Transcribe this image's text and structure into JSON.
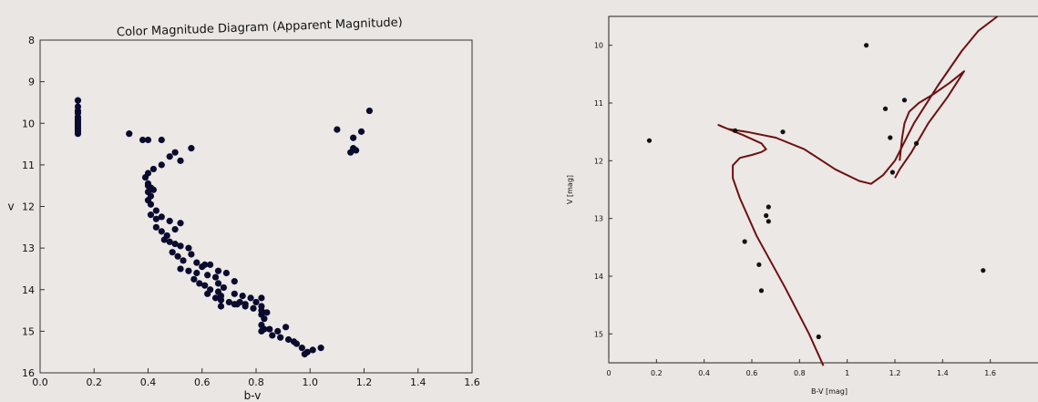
{
  "chart_data": [
    {
      "type": "scatter",
      "title": "Color Magnitude Diagram (Apparent Magnitude)",
      "xlabel": "b-v",
      "ylabel": "v",
      "xlim": [
        0.0,
        1.6
      ],
      "ylim": [
        16,
        8
      ],
      "y_inverted": true,
      "grid": false,
      "xticks": [
        "0.0",
        "0.2",
        "0.4",
        "0.6",
        "0.8",
        "1.0",
        "1.2",
        "1.4",
        "1.6"
      ],
      "yticks": [
        "8",
        "9",
        "10",
        "11",
        "12",
        "13",
        "14",
        "15",
        "16"
      ],
      "marker_color": "#0b0b2e",
      "series": [
        {
          "x": [
            0.14,
            0.14,
            0.14,
            0.14,
            0.14,
            0.14,
            0.14,
            0.14,
            0.14,
            0.14,
            0.14,
            0.14,
            0.14,
            0.33,
            0.38,
            0.4,
            0.45,
            0.56,
            0.42,
            0.4,
            0.45,
            0.48,
            0.5,
            0.52,
            0.39,
            0.4,
            0.41,
            0.4,
            0.41,
            0.4,
            0.41,
            0.4,
            0.42,
            0.41,
            0.43,
            0.43,
            0.45,
            0.48,
            0.52,
            0.43,
            0.45,
            0.47,
            0.5,
            0.46,
            0.48,
            0.5,
            0.52,
            0.55,
            0.49,
            0.51,
            0.53,
            0.56,
            0.58,
            0.61,
            0.52,
            0.55,
            0.58,
            0.6,
            0.62,
            0.65,
            0.57,
            0.59,
            0.61,
            0.63,
            0.63,
            0.66,
            0.69,
            0.72,
            0.62,
            0.65,
            0.67,
            0.7,
            0.72,
            0.66,
            0.67,
            0.66,
            0.68,
            0.67,
            0.72,
            0.75,
            0.78,
            0.8,
            0.73,
            0.76,
            0.79,
            0.82,
            0.84,
            0.74,
            0.76,
            0.82,
            0.82,
            0.82,
            0.83,
            0.82,
            0.83,
            0.82,
            0.85,
            0.88,
            0.91,
            0.86,
            0.89,
            0.92,
            0.94,
            0.95,
            0.97,
            0.99,
            1.01,
            1.04,
            0.98,
            1.1,
            1.16,
            1.19,
            1.22,
            1.16,
            1.15,
            1.17
          ],
          "y": [
            9.45,
            9.6,
            9.75,
            9.85,
            9.95,
            10.05,
            10.15,
            10.25,
            9.7,
            9.9,
            10.0,
            10.1,
            10.2,
            10.25,
            10.4,
            10.4,
            10.4,
            10.6,
            11.1,
            11.2,
            11.0,
            10.8,
            10.7,
            10.9,
            11.3,
            11.45,
            11.55,
            11.65,
            11.75,
            11.85,
            11.95,
            11.5,
            11.6,
            12.2,
            12.1,
            12.3,
            12.25,
            12.35,
            12.4,
            12.5,
            12.6,
            12.7,
            12.55,
            12.8,
            12.85,
            12.9,
            12.95,
            13.0,
            13.1,
            13.2,
            13.3,
            13.15,
            13.35,
            13.4,
            13.5,
            13.55,
            13.6,
            13.45,
            13.65,
            13.7,
            13.75,
            13.85,
            13.9,
            14.0,
            13.4,
            13.55,
            13.6,
            13.8,
            14.1,
            14.2,
            14.25,
            14.3,
            14.35,
            14.05,
            14.15,
            13.85,
            13.95,
            14.4,
            14.1,
            14.15,
            14.2,
            14.3,
            14.35,
            14.4,
            14.45,
            14.5,
            14.55,
            14.3,
            14.35,
            14.2,
            14.4,
            14.6,
            14.7,
            14.85,
            14.95,
            15.0,
            14.95,
            15.0,
            14.9,
            15.1,
            15.15,
            15.2,
            15.25,
            15.3,
            15.4,
            15.5,
            15.45,
            15.4,
            15.55,
            10.15,
            10.35,
            10.2,
            9.7,
            10.6,
            10.7,
            10.65
          ]
        }
      ]
    },
    {
      "type": "line",
      "title": "",
      "xlabel": "B-V [mag]",
      "ylabel": "V [mag]",
      "xlim": [
        0.0,
        1.8
      ],
      "ylim": [
        15.5,
        9.5
      ],
      "y_inverted": true,
      "grid": false,
      "xticks": [
        "0",
        "0.2",
        "0.4",
        "0.6",
        "0.8",
        "1",
        "1.2",
        "1.4",
        "1.6"
      ],
      "yticks": [
        "10",
        "11",
        "12",
        "13",
        "14",
        "15"
      ],
      "isochrone_color": "#6e1010",
      "series": [
        {
          "type": "line",
          "x": [
            0.9,
            0.84,
            0.74,
            0.62,
            0.55,
            0.52,
            0.52,
            0.55,
            0.6,
            0.64,
            0.66,
            0.64,
            0.56,
            0.5,
            0.47,
            0.46,
            0.5,
            0.58,
            0.7,
            0.82,
            0.95,
            1.05,
            1.1,
            1.15,
            1.2,
            1.28,
            1.38,
            1.48,
            1.55,
            1.63
          ],
          "y": [
            15.55,
            15.0,
            14.2,
            13.3,
            12.65,
            12.3,
            12.08,
            11.95,
            11.9,
            11.85,
            11.8,
            11.7,
            11.55,
            11.45,
            11.4,
            11.38,
            11.45,
            11.5,
            11.6,
            11.8,
            12.15,
            12.35,
            12.4,
            12.25,
            12.0,
            11.35,
            10.7,
            10.1,
            9.75,
            9.5
          ]
        },
        {
          "type": "line",
          "x": [
            1.22,
            1.23,
            1.24,
            1.26,
            1.3,
            1.36,
            1.43,
            1.49,
            1.42,
            1.34,
            1.27,
            1.22,
            1.2
          ],
          "y": [
            12.0,
            11.6,
            11.35,
            11.15,
            11.0,
            10.85,
            10.65,
            10.45,
            10.9,
            11.35,
            11.85,
            12.15,
            12.3
          ]
        },
        {
          "type": "scatter",
          "x": [
            0.17,
            0.53,
            0.73,
            1.08,
            1.16,
            1.18,
            1.19,
            1.24,
            1.29,
            0.63,
            0.64,
            0.67,
            0.66,
            0.67,
            0.57,
            0.88,
            1.57
          ],
          "y": [
            11.65,
            11.48,
            11.5,
            10.0,
            11.1,
            11.6,
            12.2,
            10.95,
            11.7,
            13.8,
            14.25,
            12.8,
            12.95,
            13.05,
            13.4,
            15.05,
            13.9
          ]
        }
      ]
    }
  ]
}
